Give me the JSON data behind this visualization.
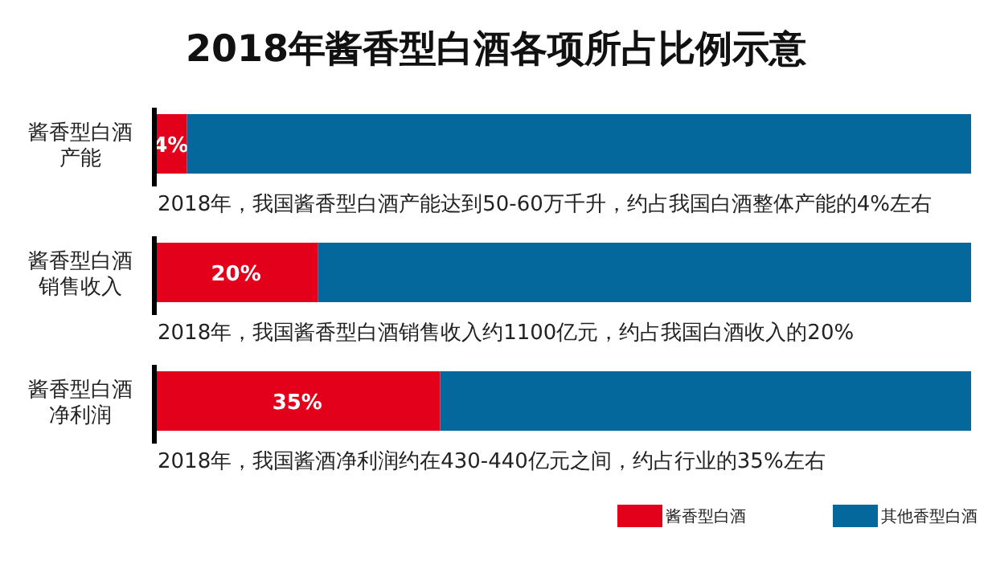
{
  "chart_data": {
    "type": "bar",
    "orientation": "horizontal",
    "stacked": true,
    "title": "2018年酱香型白酒各项所占比例示意",
    "categories": [
      "酱香型白酒产能",
      "酱香型白酒销售收入",
      "酱香型白酒净利润"
    ],
    "series": [
      {
        "name": "酱香型白酒",
        "color": "#e2001a",
        "values": [
          4,
          20,
          35
        ],
        "value_labels": [
          "4%",
          "20%",
          "35%"
        ]
      },
      {
        "name": "其他香型白酒",
        "color": "#04689c",
        "values": [
          96,
          80,
          65
        ]
      }
    ],
    "xlim": [
      0,
      100
    ],
    "tick_labels": false,
    "legend": "bottom right",
    "annotations": [
      "2018年，我国酱香型白酒产能达到50-60万千升，约占我国白酒整体产能的4%左右",
      "2018年，我国酱香型白酒销售收入约1100亿元，约占我国白酒收入的20%",
      "2018年，我国酱酒净利润约在430-440亿元之间，约占行业的35%左右"
    ]
  }
}
